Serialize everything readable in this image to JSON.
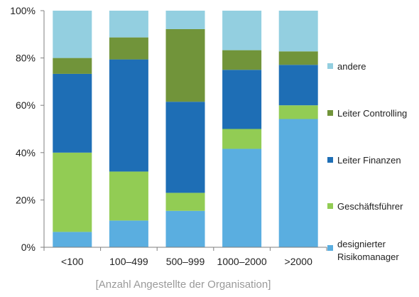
{
  "chart_data": {
    "type": "bar",
    "stacked": true,
    "categories": [
      "<100",
      "100–499",
      "500–999",
      "1000–2000",
      ">2000"
    ],
    "ylim": [
      0,
      100
    ],
    "yticks": [
      "0%",
      "20%",
      "40%",
      "60%",
      "80%",
      "100%"
    ],
    "ytick_values": [
      0,
      20,
      40,
      60,
      80,
      100
    ],
    "xlabel": "[Anzahl Angestellte der Organisation]",
    "ylabel": "",
    "grid": false,
    "legend_position": "right",
    "series": [
      {
        "name": "designierter Risikomanager",
        "color": "#5aaee0",
        "values": [
          6.5,
          11.3,
          15.4,
          41.6,
          54.2
        ]
      },
      {
        "name": "Geschäftsführer",
        "color": "#92cc54",
        "values": [
          33.5,
          20.7,
          7.6,
          8.4,
          5.8
        ]
      },
      {
        "name": "Leiter Finanzen",
        "color": "#1e6eb5",
        "values": [
          33.3,
          47.4,
          38.5,
          25.0,
          17.1
        ]
      },
      {
        "name": "Leiter Controlling",
        "color": "#71943a",
        "values": [
          6.7,
          9.3,
          30.7,
          8.3,
          5.7
        ]
      },
      {
        "name": "andere",
        "color": "#93cfe0",
        "values": [
          20.0,
          11.3,
          7.8,
          16.7,
          17.2
        ]
      }
    ],
    "legend_order": [
      "andere",
      "Leiter Controlling",
      "Leiter Finanzen",
      "Geschäftsführer",
      "designierter Risikomanager"
    ]
  }
}
